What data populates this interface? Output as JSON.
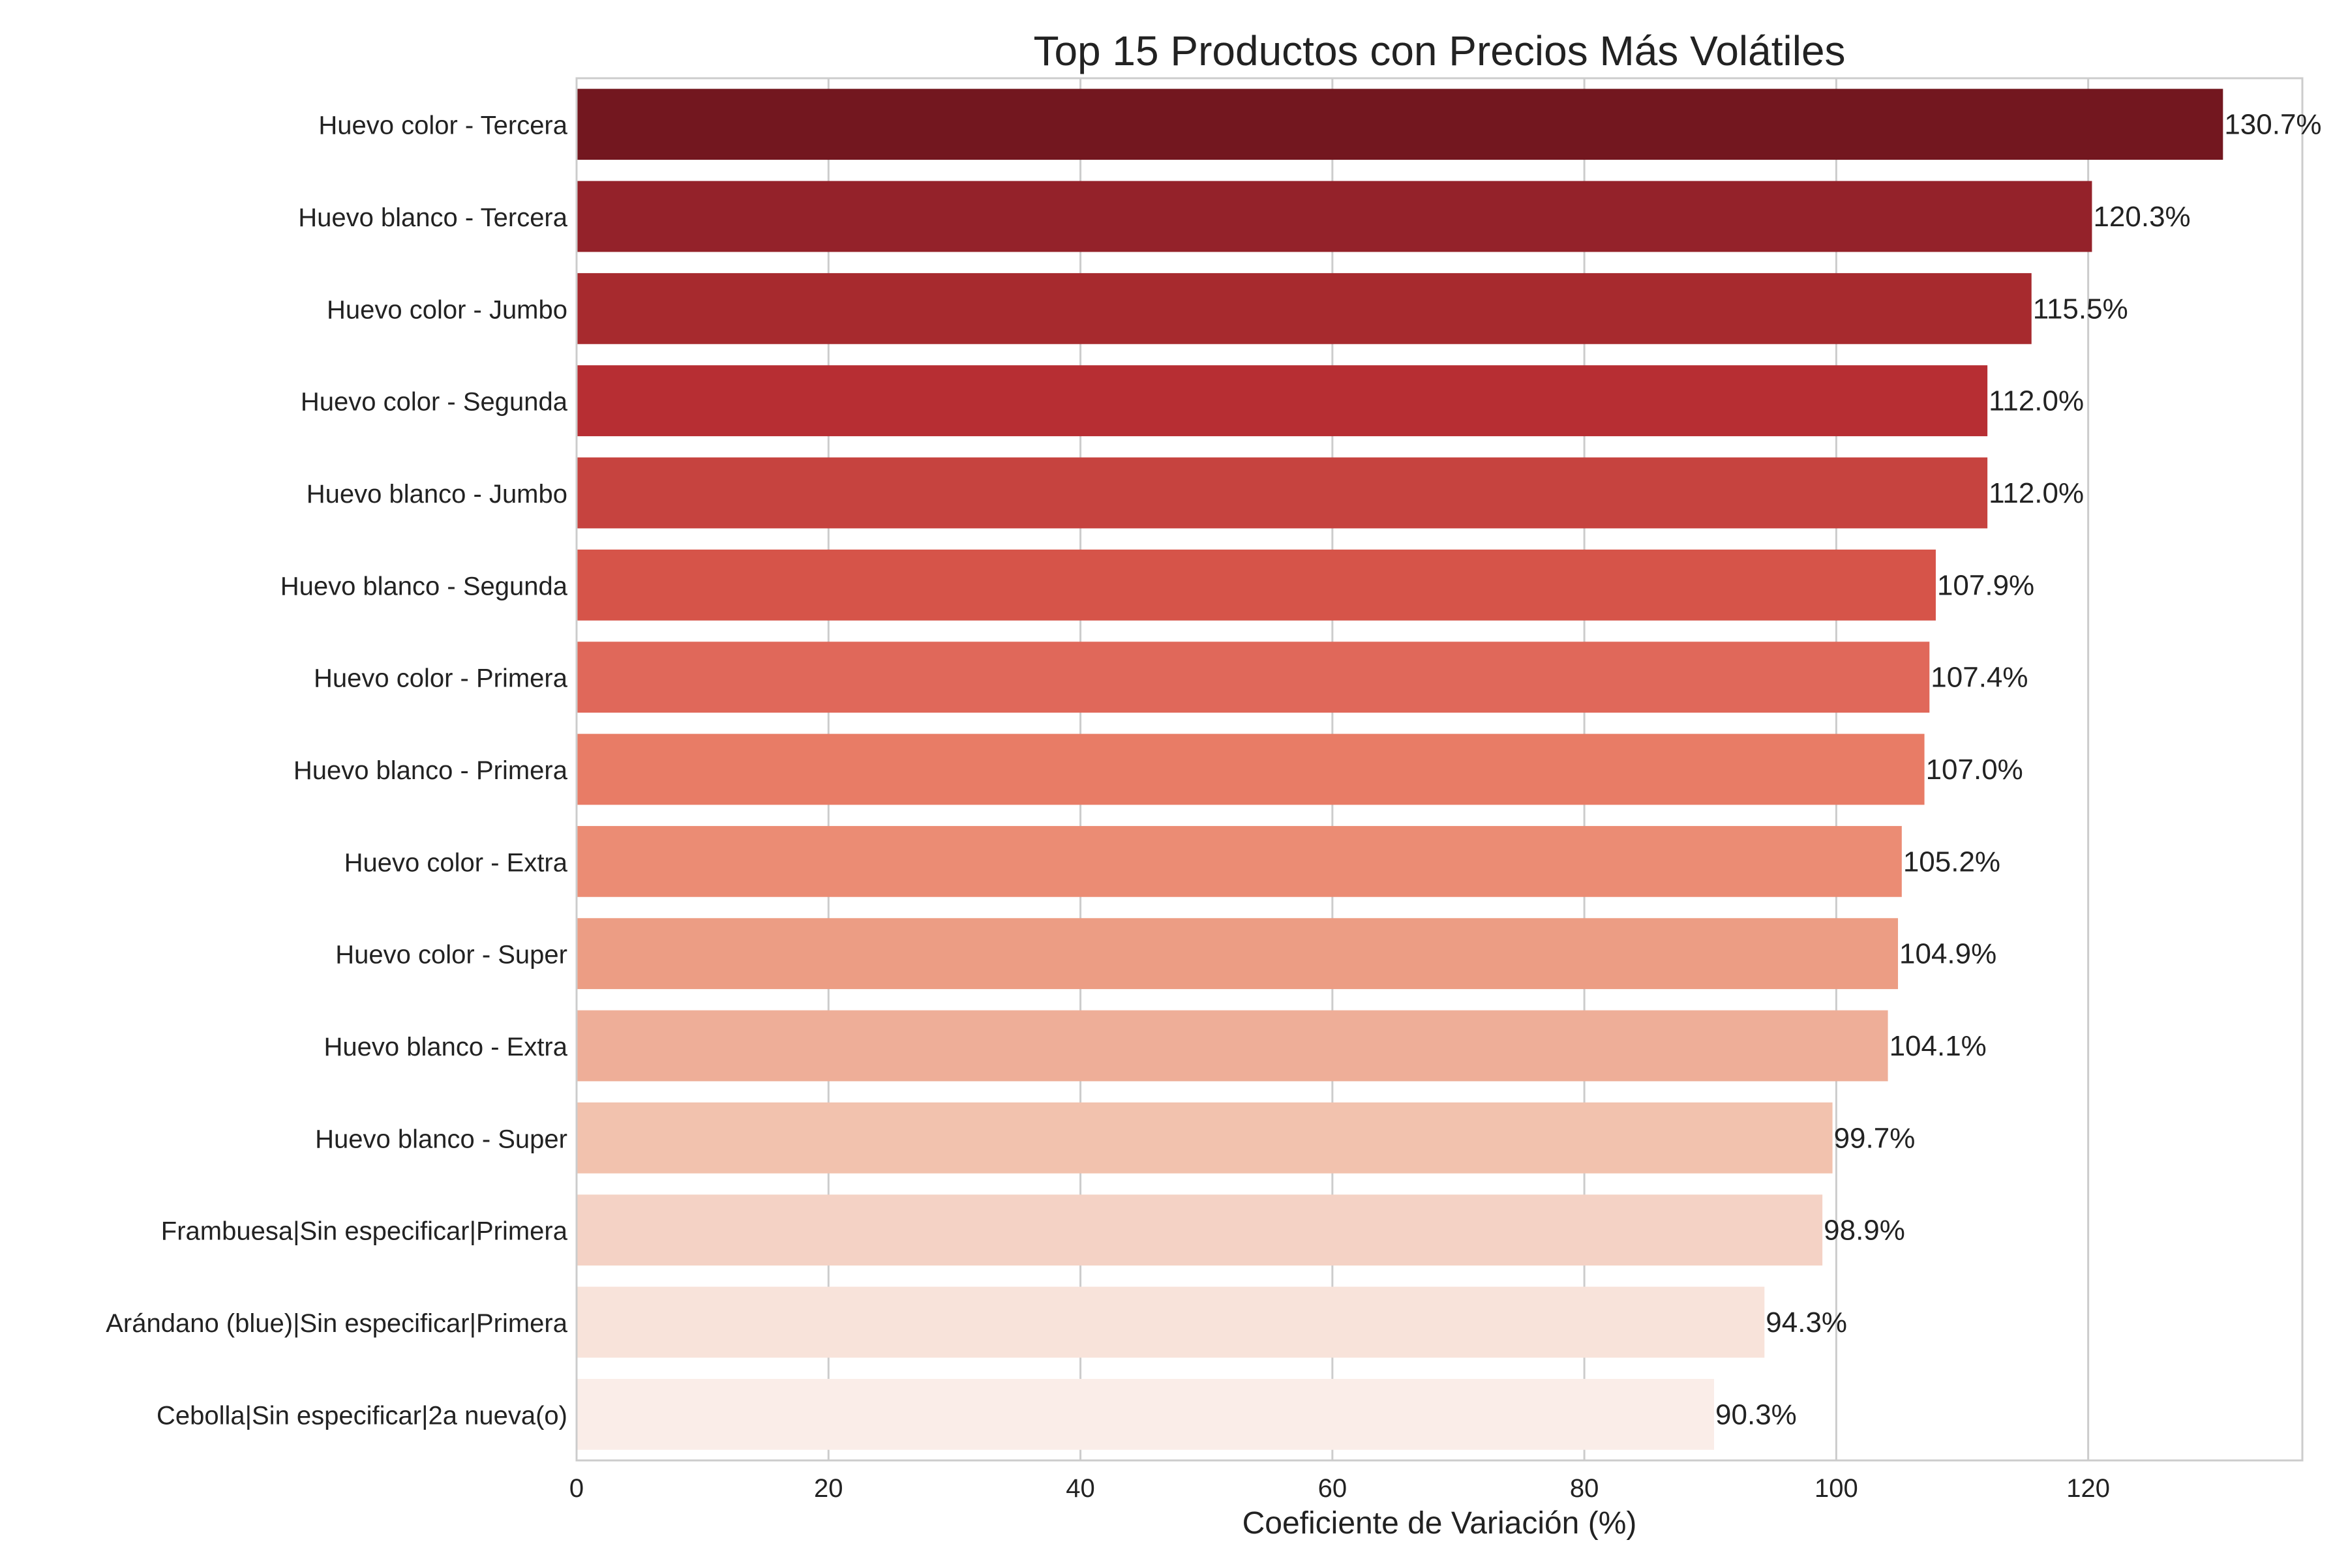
{
  "chart_data": {
    "type": "bar",
    "orientation": "horizontal",
    "title": "Top 15 Productos con Precios Más Volátiles",
    "xlabel": "Coeficiente de Variación (%)",
    "ylabel": "",
    "xlim": [
      0,
      137
    ],
    "x_ticks": [
      0,
      20,
      40,
      60,
      80,
      100,
      120
    ],
    "grid": true,
    "value_label_suffix": "%",
    "categories": [
      "Huevo color - Tercera",
      "Huevo blanco - Tercera",
      "Huevo color - Jumbo",
      "Huevo color - Segunda",
      "Huevo blanco - Jumbo",
      "Huevo blanco - Segunda",
      "Huevo color - Primera",
      "Huevo blanco - Primera",
      "Huevo color - Extra",
      "Huevo color - Super",
      "Huevo blanco - Extra",
      "Huevo blanco - Super",
      "Frambuesa|Sin especificar|Primera",
      "Arándano (blue)|Sin especificar|Primera",
      "Cebolla|Sin especificar|2a nueva(o)"
    ],
    "values": [
      130.7,
      120.3,
      115.5,
      112.0,
      112.0,
      107.9,
      107.4,
      107.0,
      105.2,
      104.9,
      104.1,
      99.7,
      98.9,
      94.3,
      90.3
    ],
    "value_labels": [
      "130.7%",
      "120.3%",
      "115.5%",
      "112.0%",
      "112.0%",
      "107.9%",
      "107.4%",
      "107.0%",
      "105.2%",
      "104.9%",
      "104.1%",
      "99.7%",
      "98.9%",
      "94.3%",
      "90.3%"
    ],
    "colors": [
      "#73171f",
      "#94222a",
      "#a72a2e",
      "#b72e33",
      "#c6433f",
      "#d65449",
      "#e0685a",
      "#e87c66",
      "#eb8c74",
      "#ec9d84",
      "#eeae98",
      "#f2c2ae",
      "#f4d2c5",
      "#f8e3da",
      "#faede8"
    ]
  }
}
